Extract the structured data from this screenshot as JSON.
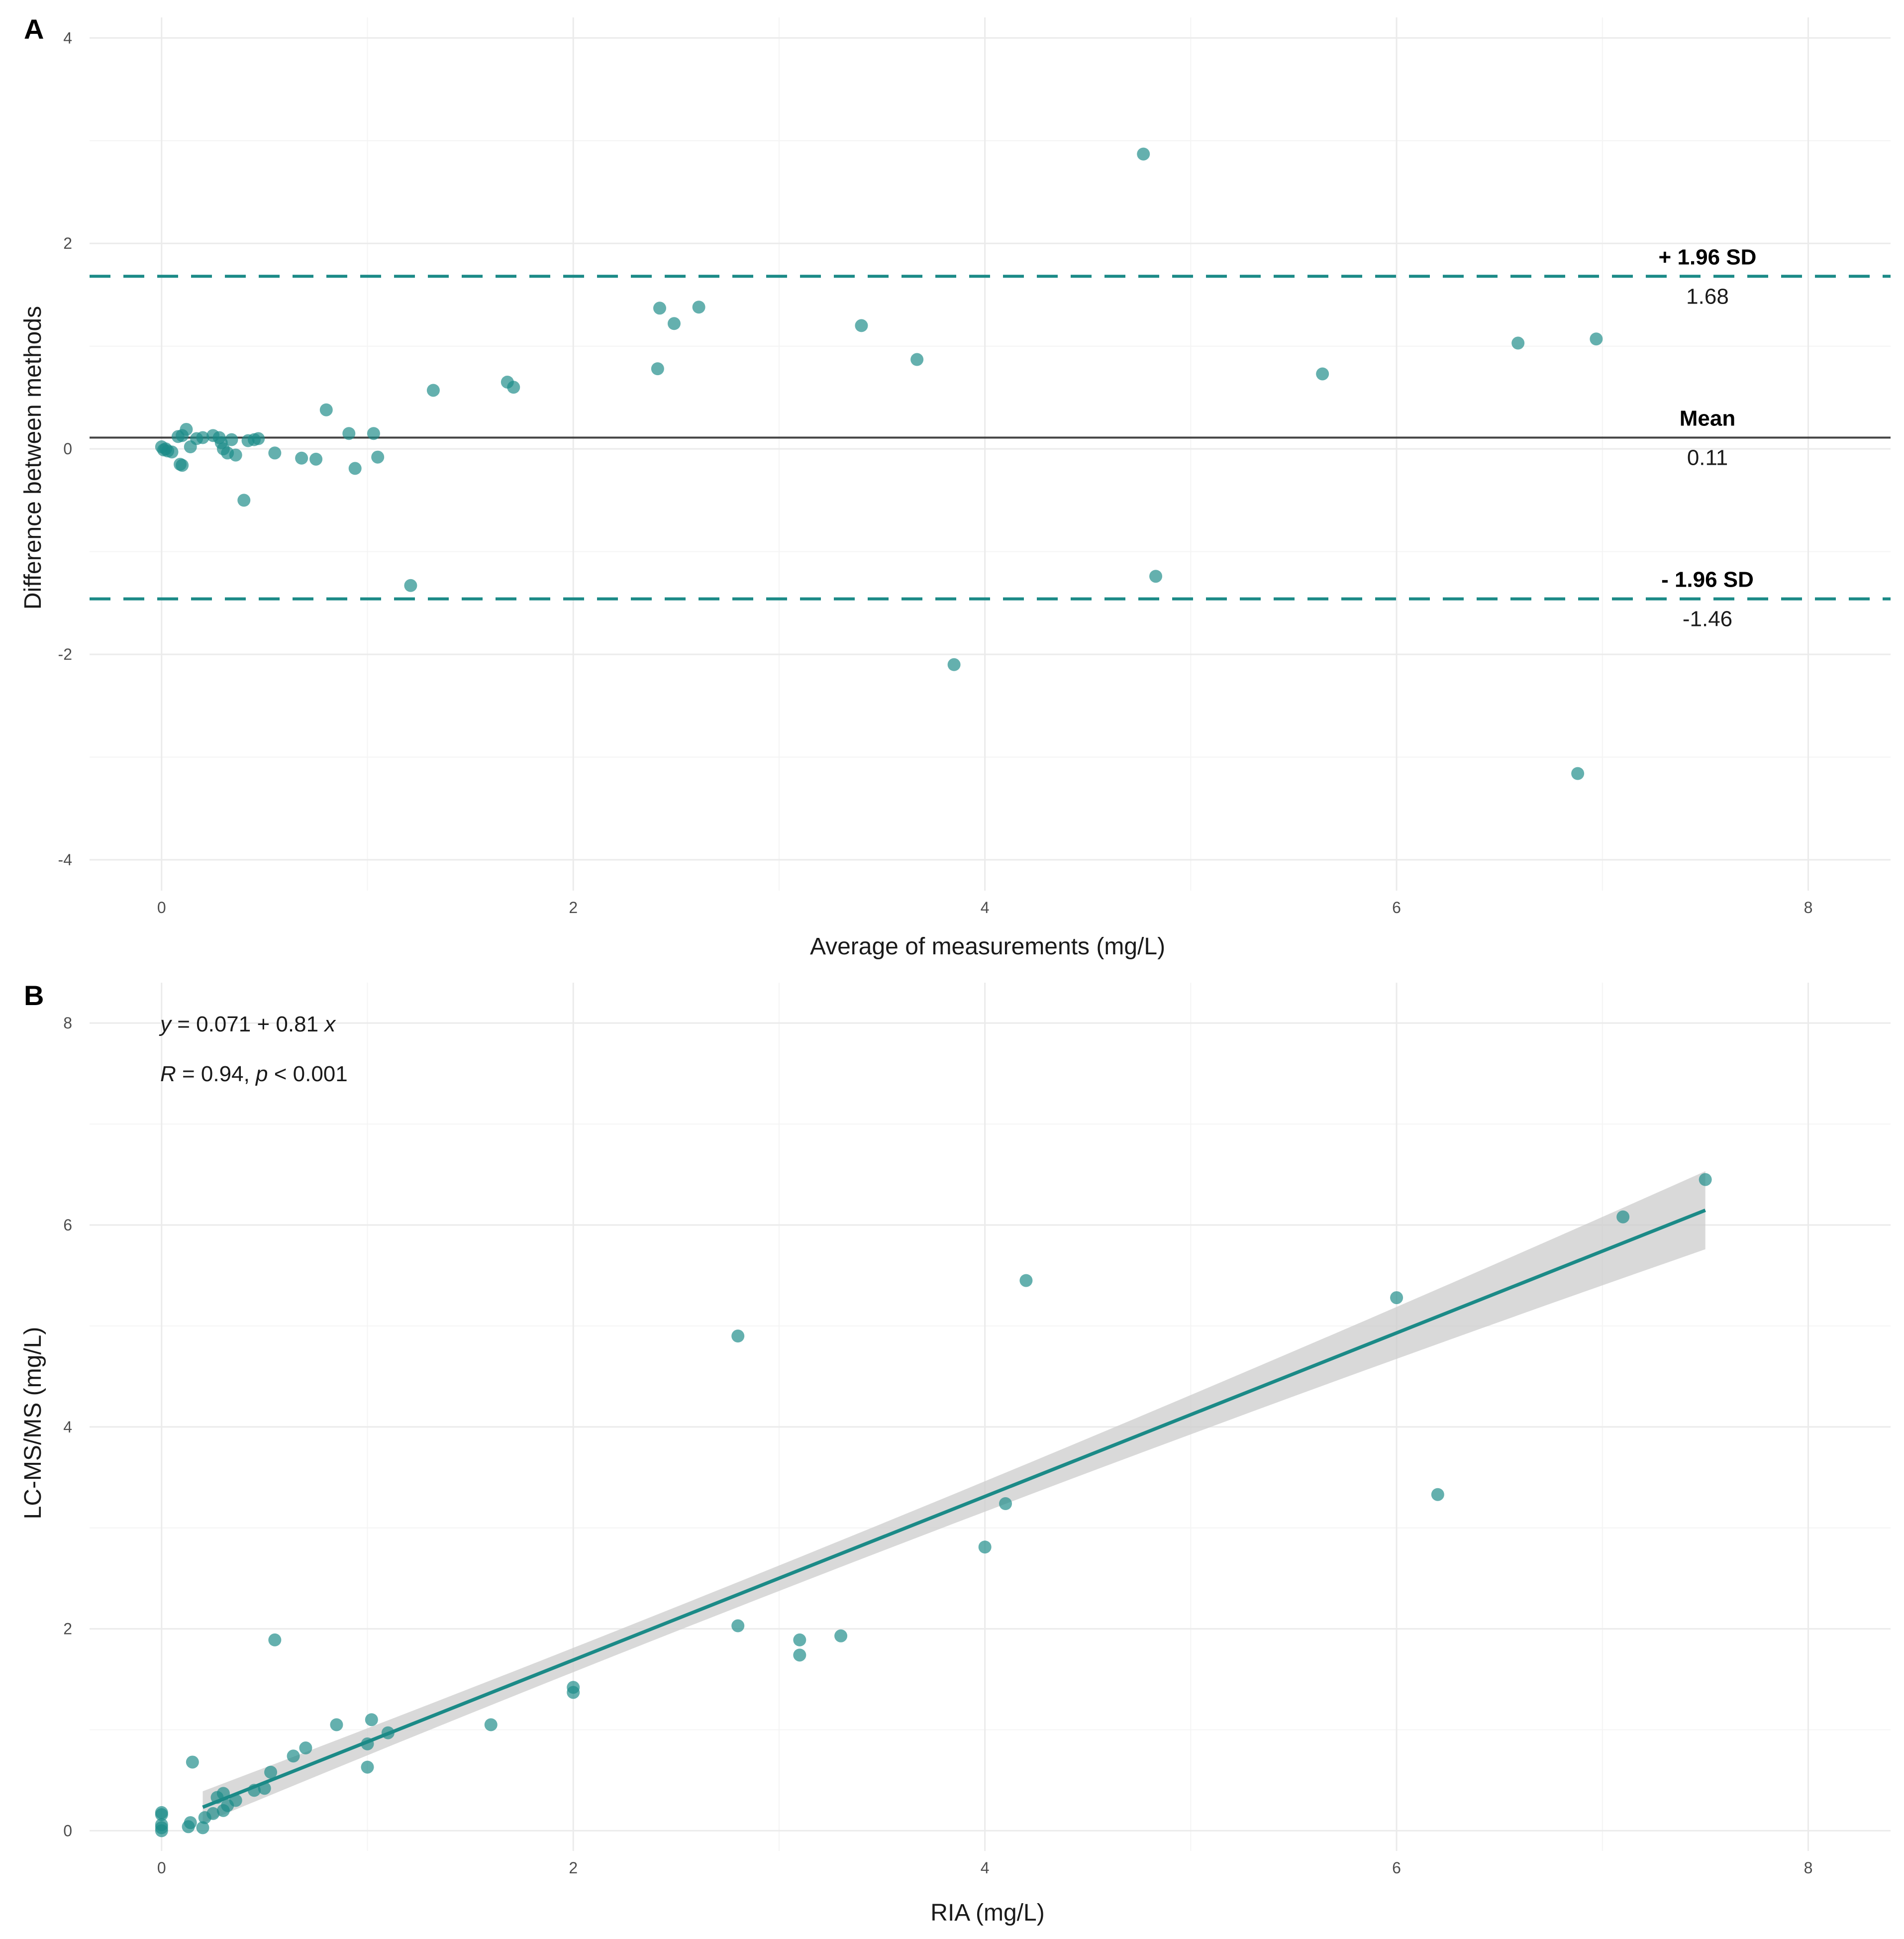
{
  "chart_data": [
    {
      "panel": "A",
      "type": "scatter",
      "title": "",
      "xlabel": "Average of measurements (mg/L)",
      "ylabel": "Difference between methods",
      "xlim": [
        -0.35,
        8.4
      ],
      "ylim": [
        -4.3,
        4.2
      ],
      "xticks": [
        "0",
        "2",
        "4",
        "6",
        "8"
      ],
      "yticks": [
        "-4",
        "-2",
        "0",
        "2",
        "4"
      ],
      "point_color": "#1b8a87",
      "line_color": "#1b8a87",
      "reference_lines": [
        {
          "label": "+ 1.96 SD",
          "value_text": "1.68",
          "y": 1.68,
          "style": "dashed"
        },
        {
          "label": "Mean",
          "value_text": "0.11",
          "y": 0.11,
          "style": "solid"
        },
        {
          "label": "- 1.96 SD",
          "value_text": "-1.46",
          "y": -1.46,
          "style": "dashed"
        }
      ],
      "points": [
        [
          0.0,
          0.02
        ],
        [
          0.01,
          -0.01
        ],
        [
          0.02,
          0.0
        ],
        [
          0.03,
          -0.02
        ],
        [
          0.05,
          -0.03
        ],
        [
          0.08,
          0.12
        ],
        [
          0.1,
          0.13
        ],
        [
          0.12,
          0.19
        ],
        [
          0.09,
          -0.15
        ],
        [
          0.1,
          -0.16
        ],
        [
          0.14,
          0.02
        ],
        [
          0.17,
          0.1
        ],
        [
          0.2,
          0.11
        ],
        [
          0.25,
          0.13
        ],
        [
          0.28,
          0.11
        ],
        [
          0.29,
          0.06
        ],
        [
          0.3,
          0.0
        ],
        [
          0.32,
          -0.04
        ],
        [
          0.34,
          0.09
        ],
        [
          0.36,
          -0.06
        ],
        [
          0.42,
          0.08
        ],
        [
          0.45,
          0.09
        ],
        [
          0.47,
          0.1
        ],
        [
          0.4,
          -0.5
        ],
        [
          0.55,
          -0.04
        ],
        [
          0.68,
          -0.09
        ],
        [
          0.75,
          -0.1
        ],
        [
          0.8,
          0.38
        ],
        [
          0.91,
          0.15
        ],
        [
          0.94,
          -0.19
        ],
        [
          1.03,
          0.15
        ],
        [
          1.05,
          -0.08
        ],
        [
          1.21,
          -1.33
        ],
        [
          1.32,
          0.57
        ],
        [
          1.68,
          0.65
        ],
        [
          1.71,
          0.6
        ],
        [
          2.41,
          0.78
        ],
        [
          2.42,
          1.37
        ],
        [
          2.49,
          1.22
        ],
        [
          2.61,
          1.38
        ],
        [
          3.4,
          1.2
        ],
        [
          3.67,
          0.87
        ],
        [
          3.85,
          -2.1
        ],
        [
          4.77,
          2.87
        ],
        [
          4.83,
          -1.24
        ],
        [
          5.64,
          0.73
        ],
        [
          6.59,
          1.03
        ],
        [
          6.88,
          -3.16
        ],
        [
          6.97,
          1.07
        ]
      ]
    },
    {
      "panel": "B",
      "type": "scatter",
      "title": "",
      "xlabel": "RIA (mg/L)",
      "ylabel": "LC-MS/MS (mg/L)",
      "xlim": [
        -0.35,
        8.4
      ],
      "ylim": [
        -0.2,
        8.4
      ],
      "xticks": [
        "0",
        "2",
        "4",
        "6",
        "8"
      ],
      "yticks": [
        "0",
        "2",
        "4",
        "6",
        "8"
      ],
      "point_color": "#1b8a87",
      "line_color": "#1b8a87",
      "band_color": "#cccccc",
      "fit": {
        "intercept": 0.071,
        "slope": 0.81,
        "x_range": [
          0.2,
          7.5
        ]
      },
      "stat_line_1": [
        "y",
        " = 0.071 + 0.81 ",
        "x"
      ],
      "stat_line_2": [
        "R",
        " = 0.94, ",
        "p",
        " < 0.001"
      ],
      "points": [
        [
          0.0,
          0.0
        ],
        [
          0.0,
          0.03
        ],
        [
          0.0,
          0.06
        ],
        [
          0.0,
          0.16
        ],
        [
          0.0,
          0.18
        ],
        [
          0.13,
          0.04
        ],
        [
          0.14,
          0.08
        ],
        [
          0.15,
          0.68
        ],
        [
          0.2,
          0.03
        ],
        [
          0.21,
          0.13
        ],
        [
          0.25,
          0.17
        ],
        [
          0.27,
          0.33
        ],
        [
          0.3,
          0.37
        ],
        [
          0.3,
          0.2
        ],
        [
          0.32,
          0.25
        ],
        [
          0.36,
          0.3
        ],
        [
          0.45,
          0.4
        ],
        [
          0.5,
          0.42
        ],
        [
          0.53,
          0.58
        ],
        [
          0.55,
          1.89
        ],
        [
          0.64,
          0.74
        ],
        [
          0.7,
          0.82
        ],
        [
          0.85,
          1.05
        ],
        [
          1.0,
          0.63
        ],
        [
          1.0,
          0.86
        ],
        [
          1.02,
          1.1
        ],
        [
          1.1,
          0.97
        ],
        [
          1.6,
          1.05
        ],
        [
          2.0,
          1.42
        ],
        [
          2.0,
          1.37
        ],
        [
          2.8,
          4.9
        ],
        [
          2.8,
          2.03
        ],
        [
          3.1,
          1.89
        ],
        [
          3.1,
          1.74
        ],
        [
          3.3,
          1.93
        ],
        [
          4.0,
          2.81
        ],
        [
          4.1,
          3.24
        ],
        [
          4.2,
          5.45
        ],
        [
          6.0,
          5.28
        ],
        [
          6.2,
          3.33
        ],
        [
          7.1,
          6.08
        ],
        [
          7.5,
          6.45
        ]
      ]
    }
  ],
  "panel_labels": {
    "a": "A",
    "b": "B"
  }
}
